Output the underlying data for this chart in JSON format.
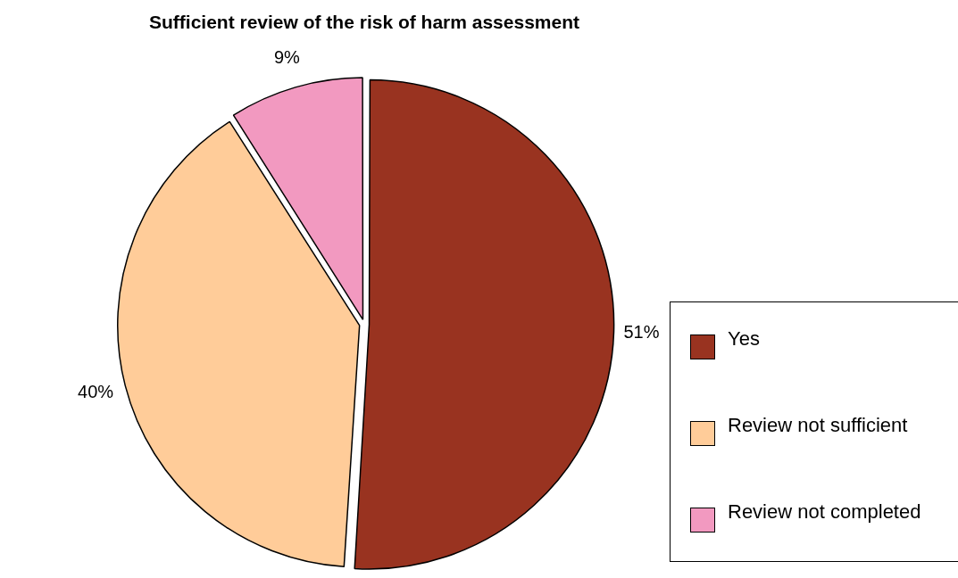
{
  "chart_data": {
    "type": "pie",
    "title": "Sufficient review of the risk of harm assessment",
    "categories": [
      "Yes",
      "Review not sufficient",
      "Review not completed"
    ],
    "values": [
      51,
      40,
      9
    ],
    "colors": [
      "#993320",
      "#ffcc99",
      "#f299c0"
    ],
    "value_labels": [
      "51%",
      "40%",
      "9%"
    ],
    "legend": "right"
  }
}
